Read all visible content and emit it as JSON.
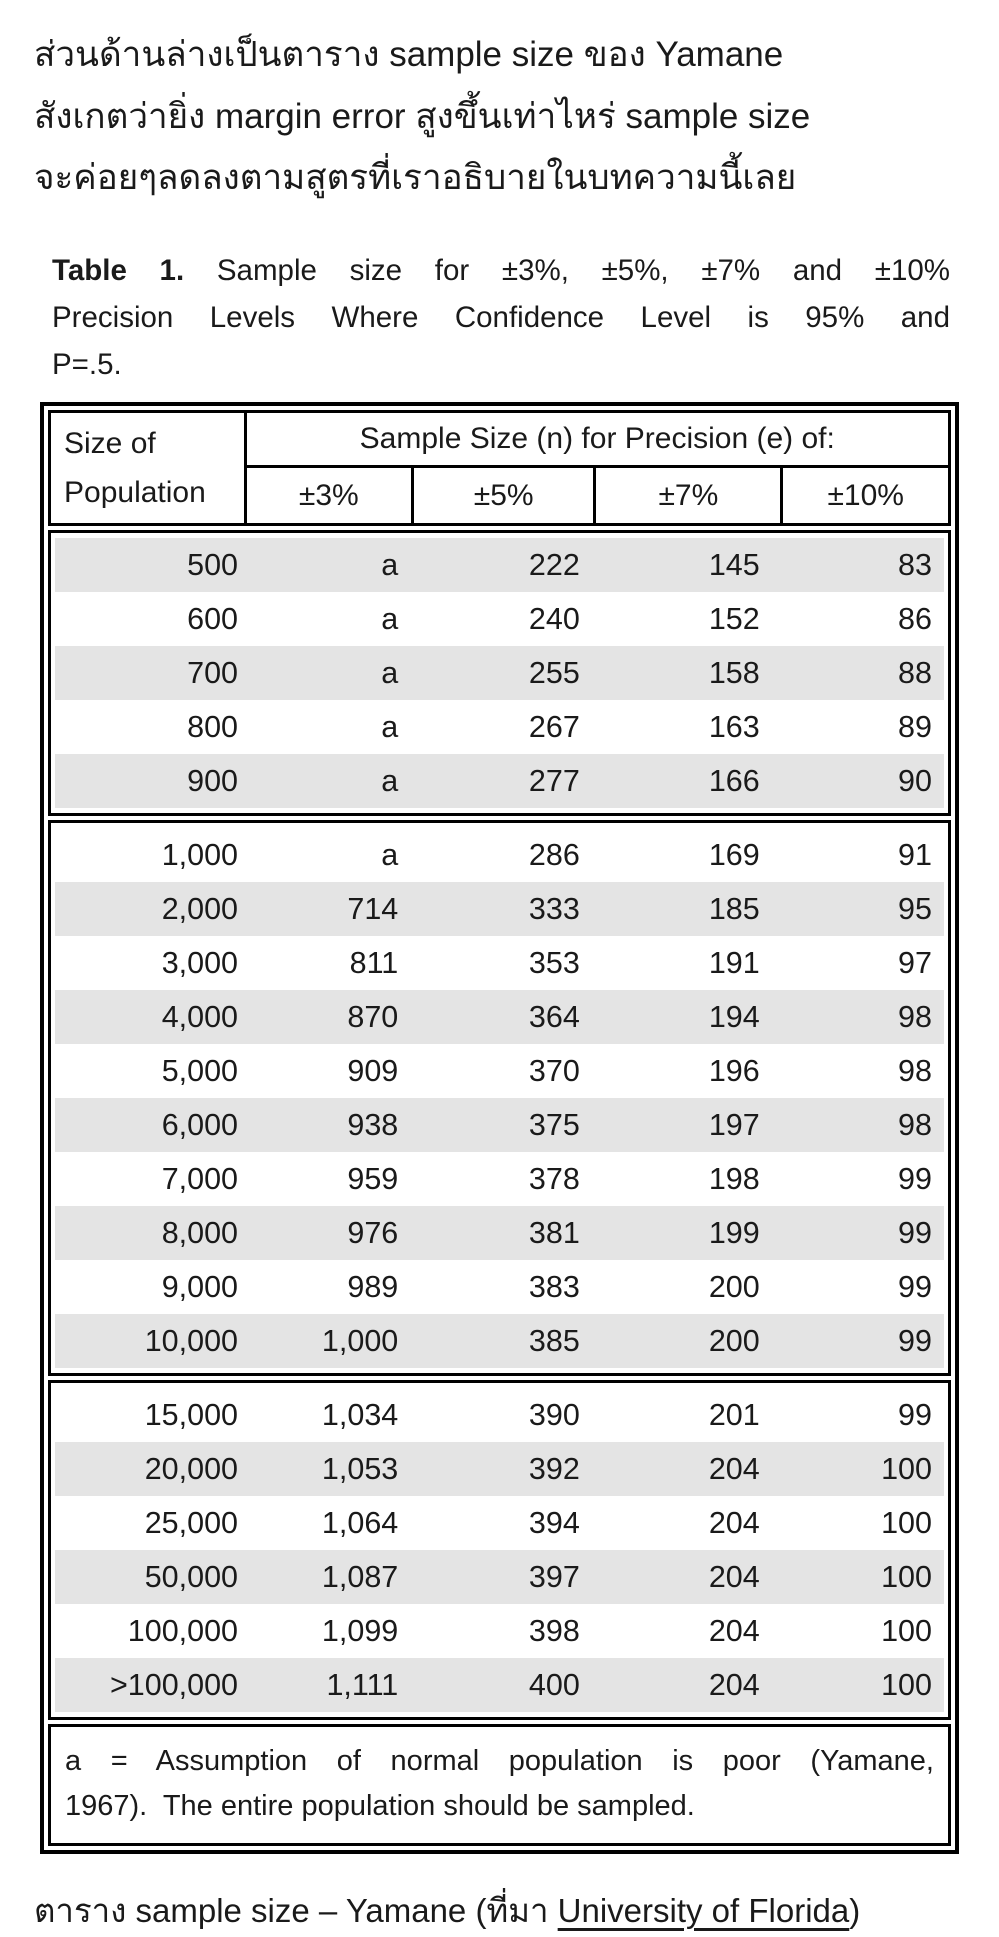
{
  "page": {
    "background": "#ffffff",
    "text_color": "#1a1a1a"
  },
  "intro": {
    "lines": [
      "ส่วนด้านล่างเป็นตาราง sample size ของ Yamane",
      "สังเกตว่ายิ่ง margin error สูงขึ้นเท่าไหร่ sample size",
      "จะค่อยๆลดลงตามสูตรที่เราอธิบายในบทความนี้เลย"
    ]
  },
  "table_title": {
    "bold": "Table 1.",
    "line1_rest": "Sample size for ±3%, ±5%, ±7% and ±10%",
    "line2": "Precision Levels Where Confidence Level is 95% and",
    "line3": "P=.5."
  },
  "table": {
    "stripe_color": "#e4e4e4",
    "border_color": "#000000",
    "header": {
      "population_line1": "Size of",
      "population_line2": "Population",
      "group_label": "Sample Size (n) for Precision (e) of:",
      "precision_labels": [
        "±3%",
        "±5%",
        "±7%",
        "±10%"
      ]
    },
    "blocks": [
      {
        "first_row_shaded": true,
        "rows": [
          [
            "500",
            "a",
            "222",
            "145",
            "83"
          ],
          [
            "600",
            "a",
            "240",
            "152",
            "86"
          ],
          [
            "700",
            "a",
            "255",
            "158",
            "88"
          ],
          [
            "800",
            "a",
            "267",
            "163",
            "89"
          ],
          [
            "900",
            "a",
            "277",
            "166",
            "90"
          ]
        ]
      },
      {
        "first_row_shaded": false,
        "rows": [
          [
            "1,000",
            "a",
            "286",
            "169",
            "91"
          ],
          [
            "2,000",
            "714",
            "333",
            "185",
            "95"
          ],
          [
            "3,000",
            "811",
            "353",
            "191",
            "97"
          ],
          [
            "4,000",
            "870",
            "364",
            "194",
            "98"
          ],
          [
            "5,000",
            "909",
            "370",
            "196",
            "98"
          ],
          [
            "6,000",
            "938",
            "375",
            "197",
            "98"
          ],
          [
            "7,000",
            "959",
            "378",
            "198",
            "99"
          ],
          [
            "8,000",
            "976",
            "381",
            "199",
            "99"
          ],
          [
            "9,000",
            "989",
            "383",
            "200",
            "99"
          ],
          [
            "10,000",
            "1,000",
            "385",
            "200",
            "99"
          ]
        ]
      },
      {
        "first_row_shaded": false,
        "rows": [
          [
            "15,000",
            "1,034",
            "390",
            "201",
            "99"
          ],
          [
            "20,000",
            "1,053",
            "392",
            "204",
            "100"
          ],
          [
            "25,000",
            "1,064",
            "394",
            "204",
            "100"
          ],
          [
            "50,000",
            "1,087",
            "397",
            "204",
            "100"
          ],
          [
            "100,000",
            "1,099",
            "398",
            "204",
            "100"
          ],
          [
            ">100,000",
            "1,111",
            "400",
            "204",
            "100"
          ]
        ]
      }
    ],
    "footnote_line1": "a = Assumption of normal population is poor (Yamane,",
    "footnote_line2": "1967).  The entire population should be sampled."
  },
  "caption": {
    "prefix": "ตาราง sample size – Yamane (ที่มา ",
    "link_text": "University of Florida",
    "suffix": ")"
  }
}
